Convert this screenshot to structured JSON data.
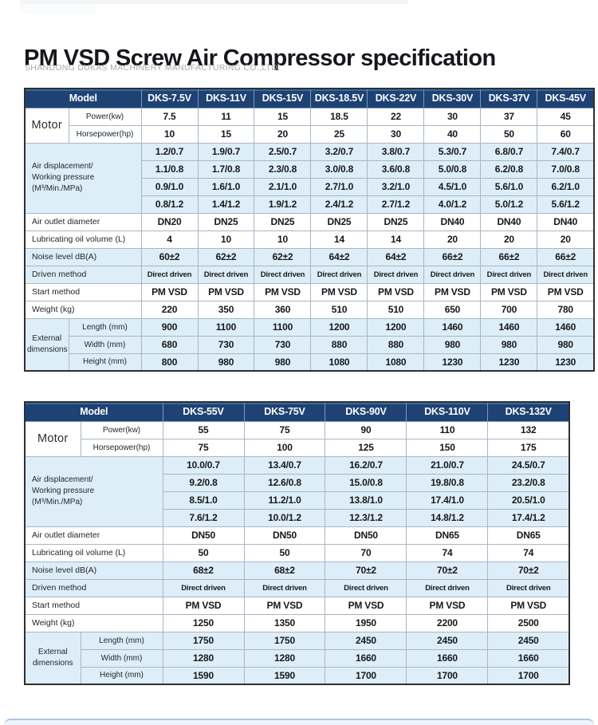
{
  "page": {
    "title": "PM VSD Screw Air Compressor specification",
    "subtitle": "SHANDONG DUKAS MACHINERY MANUFACTURING CO.,LTD."
  },
  "colors": {
    "header_bg": "#1e4273",
    "header_top": "#38699e",
    "row_blue": "#ddeef8",
    "accent_line": "#a9c6e4"
  },
  "tables": [
    {
      "model_label": "Model",
      "columns": [
        "DKS-7.5V",
        "DKS-11V",
        "DKS-15V",
        "DKS-18.5V",
        "DKS-22V",
        "DKS-30V",
        "DKS-37V",
        "DKS-45V"
      ],
      "groups": [
        {
          "key": "motor",
          "label": "Motor",
          "subs": [
            "Power(kw)",
            "Horsepower(hp)"
          ],
          "tone": "white",
          "rows": [
            [
              "7.5",
              "11",
              "15",
              "18.5",
              "22",
              "30",
              "37",
              "45"
            ],
            [
              "10",
              "15",
              "20",
              "25",
              "30",
              "40",
              "50",
              "60"
            ]
          ]
        },
        {
          "key": "airdisp",
          "label": "Air displacement/\nWorking pressure\n(M³/Min./MPa)",
          "subs": null,
          "tone": "blue",
          "rows": [
            [
              "1.2/0.7",
              "1.9/0.7",
              "2.5/0.7",
              "3.2/0.7",
              "3.8/0.7",
              "5.3/0.7",
              "6.8/0.7",
              "7.4/0.7"
            ],
            [
              "1.1/0.8",
              "1.7/0.8",
              "2.3/0.8",
              "3.0/0.8",
              "3.6/0.8",
              "5.0/0.8",
              "6.2/0.8",
              "7.0/0.8"
            ],
            [
              "0.9/1.0",
              "1.6/1.0",
              "2.1/1.0",
              "2.7/1.0",
              "3.2/1.0",
              "4.5/1.0",
              "5.6/1.0",
              "6.2/1.0"
            ],
            [
              "0.8/1.2",
              "1.4/1.2",
              "1.9/1.2",
              "2.4/1.2",
              "2.7/1.2",
              "4.0/1.2",
              "5.0/1.2",
              "5.6/1.2"
            ]
          ]
        },
        {
          "key": "outlet",
          "label": "Air outlet diameter",
          "subs": null,
          "tone": "white",
          "rows": [
            [
              "DN20",
              "DN25",
              "DN25",
              "DN25",
              "DN25",
              "DN40",
              "DN40",
              "DN40"
            ]
          ]
        },
        {
          "key": "oil",
          "label": "Lubricating oil volume (L)",
          "subs": null,
          "tone": "white",
          "rows": [
            [
              "4",
              "10",
              "10",
              "14",
              "14",
              "20",
              "20",
              "20"
            ]
          ]
        },
        {
          "key": "noise",
          "label": "Noise level dB(A)",
          "subs": null,
          "tone": "blue",
          "rows": [
            [
              "60±2",
              "62±2",
              "62±2",
              "64±2",
              "64±2",
              "66±2",
              "66±2",
              "66±2"
            ]
          ]
        },
        {
          "key": "driven",
          "label": "Driven method",
          "subs": null,
          "tone": "blue",
          "small": true,
          "rows": [
            [
              "Direct driven",
              "Direct driven",
              "Direct driven",
              "Direct driven",
              "Direct driven",
              "Direct driven",
              "Direct driven",
              "Direct driven"
            ]
          ]
        },
        {
          "key": "start",
          "label": "Start method",
          "subs": null,
          "tone": "white",
          "rows": [
            [
              "PM VSD",
              "PM VSD",
              "PM VSD",
              "PM VSD",
              "PM VSD",
              "PM VSD",
              "PM VSD",
              "PM VSD"
            ]
          ]
        },
        {
          "key": "weight",
          "label": "Weight (kg)",
          "subs": null,
          "tone": "white",
          "rows": [
            [
              "220",
              "350",
              "360",
              "510",
              "510",
              "650",
              "700",
              "780"
            ]
          ]
        },
        {
          "key": "extdim",
          "label": "External\ndimensions",
          "subs": [
            "Length (mm)",
            "Width (mm)",
            "Height (mm)"
          ],
          "tone": "blue",
          "rows": [
            [
              "900",
              "1100",
              "1100",
              "1200",
              "1200",
              "1460",
              "1460",
              "1460"
            ],
            [
              "680",
              "730",
              "730",
              "880",
              "880",
              "980",
              "980",
              "980"
            ],
            [
              "800",
              "980",
              "980",
              "1080",
              "1080",
              "1230",
              "1230",
              "1230"
            ]
          ]
        }
      ]
    },
    {
      "model_label": "Model",
      "columns": [
        "DKS-55V",
        "DKS-75V",
        "DKS-90V",
        "DKS-110V",
        "DKS-132V"
      ],
      "groups": [
        {
          "key": "motor",
          "label": "Motor",
          "subs": [
            "Power(kw)",
            "Horsepower(hp)"
          ],
          "tone": "white",
          "rows": [
            [
              "55",
              "75",
              "90",
              "110",
              "132"
            ],
            [
              "75",
              "100",
              "125",
              "150",
              "175"
            ]
          ]
        },
        {
          "key": "airdisp",
          "label": "Air displacement/\nWorking pressure\n(M³/Min./MPa)",
          "subs": null,
          "tone": "blue",
          "rows": [
            [
              "10.0/0.7",
              "13.4/0.7",
              "16.2/0.7",
              "21.0/0.7",
              "24.5/0.7"
            ],
            [
              "9.2/0.8",
              "12.6/0.8",
              "15.0/0.8",
              "19.8/0.8",
              "23.2/0.8"
            ],
            [
              "8.5/1.0",
              "11.2/1.0",
              "13.8/1.0",
              "17.4/1.0",
              "20.5/1.0"
            ],
            [
              "7.6/1.2",
              "10.0/1.2",
              "12.3/1.2",
              "14.8/1.2",
              "17.4/1.2"
            ]
          ]
        },
        {
          "key": "outlet",
          "label": "Air outlet diameter",
          "subs": null,
          "tone": "white",
          "rows": [
            [
              "DN50",
              "DN50",
              "DN50",
              "DN65",
              "DN65"
            ]
          ]
        },
        {
          "key": "oil",
          "label": "Lubricating oil volume (L)",
          "subs": null,
          "tone": "white",
          "rows": [
            [
              "50",
              "50",
              "70",
              "74",
              "74"
            ]
          ]
        },
        {
          "key": "noise",
          "label": "Noise level dB(A)",
          "subs": null,
          "tone": "blue",
          "rows": [
            [
              "68±2",
              "68±2",
              "70±2",
              "70±2",
              "70±2"
            ]
          ]
        },
        {
          "key": "driven",
          "label": "Driven method",
          "subs": null,
          "tone": "blue",
          "small": true,
          "rows": [
            [
              "Direct driven",
              "Direct driven",
              "Direct driven",
              "Direct driven",
              "Direct driven"
            ]
          ]
        },
        {
          "key": "start",
          "label": "Start method",
          "subs": null,
          "tone": "white",
          "rows": [
            [
              "PM VSD",
              "PM VSD",
              "PM VSD",
              "PM VSD",
              "PM VSD"
            ]
          ]
        },
        {
          "key": "weight",
          "label": "Weight (kg)",
          "subs": null,
          "tone": "white",
          "rows": [
            [
              "1250",
              "1350",
              "1950",
              "2200",
              "2500"
            ]
          ]
        },
        {
          "key": "extdim",
          "label": "External\ndimensions",
          "subs": [
            "Length (mm)",
            "Width (mm)",
            "Height (mm)"
          ],
          "tone": "blue",
          "rows": [
            [
              "1750",
              "1750",
              "2450",
              "2450",
              "2450"
            ],
            [
              "1280",
              "1280",
              "1660",
              "1660",
              "1660"
            ],
            [
              "1590",
              "1590",
              "1700",
              "1700",
              "1700"
            ]
          ]
        }
      ]
    }
  ]
}
